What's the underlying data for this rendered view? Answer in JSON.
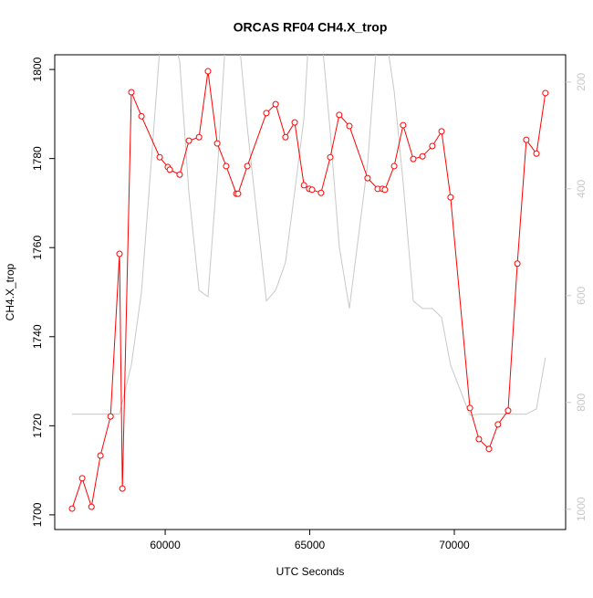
{
  "chart_data": {
    "type": "line",
    "title": "ORCAS RF04 CH4.X_trop",
    "xlabel": "UTC Seconds",
    "ylabel": "CH4.X_trop",
    "x": [
      56780,
      57130,
      57450,
      57760,
      58110,
      58420,
      58520,
      58830,
      59180,
      59810,
      60090,
      60160,
      60500,
      60820,
      61170,
      61480,
      61800,
      62110,
      62460,
      62520,
      62840,
      63500,
      63820,
      64160,
      64480,
      64800,
      64980,
      65080,
      65390,
      65710,
      66020,
      66370,
      67000,
      67350,
      67510,
      67600,
      67920,
      68230,
      68580,
      68900,
      69240,
      69560,
      69870,
      70540,
      70850,
      71200,
      71510,
      71860,
      72180,
      72490,
      72840,
      73150
    ],
    "series": [
      {
        "color": "#ff0000",
        "values": [
          1701.4,
          1708.2,
          1701.8,
          1713.3,
          1722.1,
          1758.6,
          1705.9,
          1794.9,
          1789.5,
          1780.3,
          1778.1,
          1777.5,
          1776.4,
          1784.0,
          1784.8,
          1799.6,
          1783.4,
          1778.3,
          1772.1,
          1772.1,
          1778.3,
          1790.2,
          1792.2,
          1784.8,
          1788.1,
          1774.0,
          1773.2,
          1773.0,
          1772.3,
          1780.3,
          1789.8,
          1787.3,
          1775.6,
          1773.2,
          1773.2,
          1773.0,
          1778.3,
          1787.5,
          1779.9,
          1780.5,
          1782.8,
          1786.1,
          1771.3,
          1724.0,
          1717.0,
          1714.8,
          1720.3,
          1723.4,
          1756.4,
          1784.2,
          1781.1,
          1794.7
        ]
      },
      {
        "color": "#c8c8c8",
        "axis": "y2",
        "values": [
          822,
          822,
          822,
          822,
          822,
          822,
          798,
          730,
          593,
          140,
          100,
          100,
          160,
          407,
          590,
          602,
          370,
          100,
          100,
          100,
          285,
          610,
          590,
          538,
          405,
          268,
          100,
          100,
          100,
          294,
          508,
          624,
          354,
          100,
          100,
          100,
          217,
          388,
          610,
          624,
          624,
          641,
          730,
          824,
          822,
          822,
          822,
          822,
          822,
          822,
          812,
          716
        ]
      }
    ],
    "xlim": [
      56180,
      73850
    ],
    "xticks": [
      60000,
      65000,
      70000
    ],
    "ylim": [
      1696.7,
      1803.3
    ],
    "yticks": [
      1700,
      1720,
      1740,
      1760,
      1780,
      1800
    ],
    "y2lim": [
      1038,
      149
    ],
    "y2ticks": [
      200,
      400,
      600,
      800,
      1000
    ]
  }
}
